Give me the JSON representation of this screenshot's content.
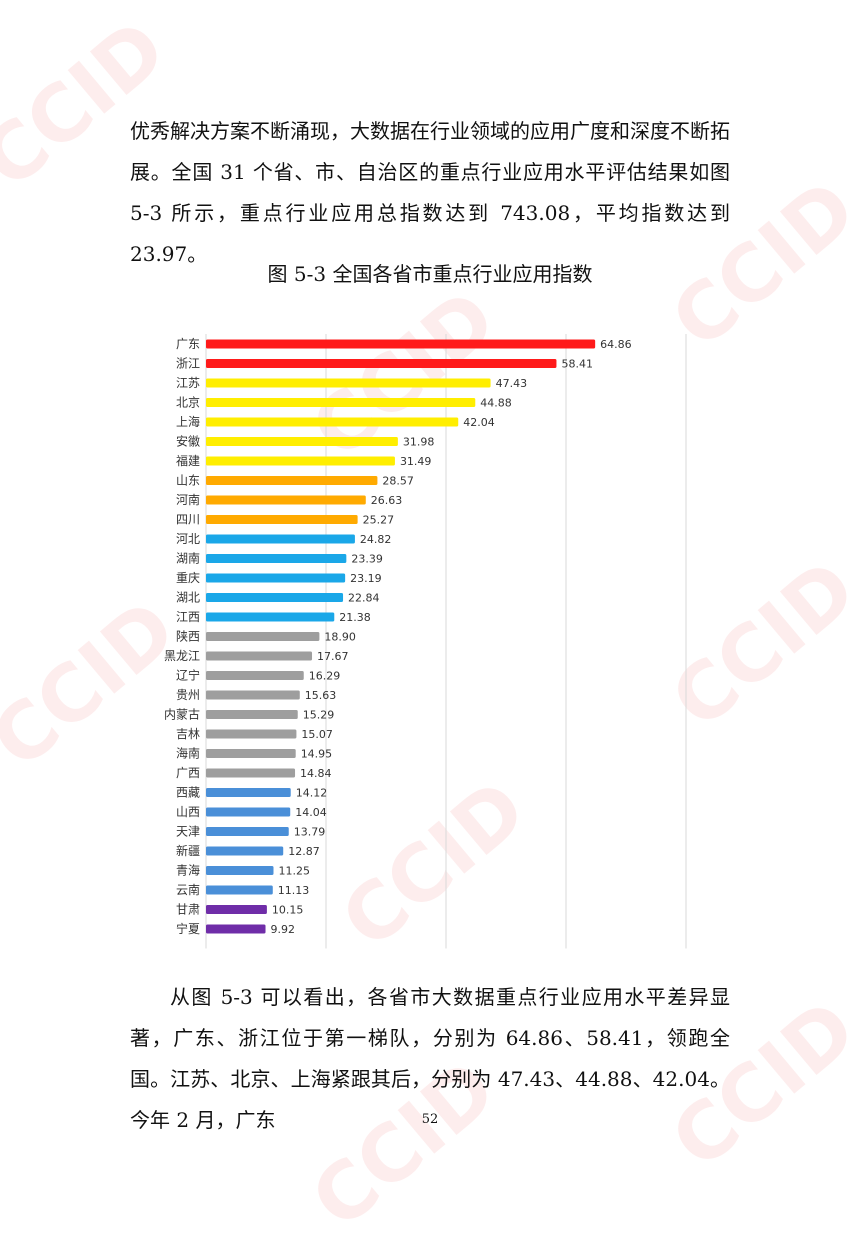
{
  "paragraphs": {
    "top": "优秀解决方案不断涌现，大数据在行业领域的应用广度和深度不断拓展。全国 31 个省、市、自治区的重点行业应用水平评估结果如图 5-3 所示，重点行业应用总指数达到 743.08，平均指数达到 23.97。",
    "bottom": "从图 5-3 可以看出，各省市大数据重点行业应用水平差异显著，广东、浙江位于第一梯队，分别为 64.86、58.41，领跑全国。江苏、北京、上海紧跟其后，分别为 47.43、44.88、42.04。今年 2 月，广东"
  },
  "figure_caption": "图 5-3  全国各省市重点行业应用指数",
  "page_number": "52",
  "watermark_text": "CCID赛迪",
  "chart_data": {
    "type": "bar",
    "orientation": "horizontal",
    "categories": [
      "广东",
      "浙江",
      "江苏",
      "北京",
      "上海",
      "安徽",
      "福建",
      "山东",
      "河南",
      "四川",
      "河北",
      "湖南",
      "重庆",
      "湖北",
      "江西",
      "陕西",
      "黑龙江",
      "辽宁",
      "贵州",
      "内蒙古",
      "吉林",
      "海南",
      "广西",
      "西藏",
      "山西",
      "天津",
      "新疆",
      "青海",
      "云南",
      "甘肃",
      "宁夏"
    ],
    "values": [
      64.86,
      58.41,
      47.43,
      44.88,
      42.04,
      31.98,
      31.49,
      28.57,
      26.63,
      25.27,
      24.82,
      23.39,
      23.19,
      22.84,
      21.38,
      18.9,
      17.67,
      16.29,
      15.63,
      15.29,
      15.07,
      14.95,
      14.84,
      14.12,
      14.04,
      13.79,
      12.87,
      11.25,
      11.13,
      10.15,
      9.92
    ],
    "value_labels": [
      "64.86",
      "58.41",
      "47.43",
      "44.88",
      "42.04",
      "31.98",
      "31.49",
      "28.57",
      "26.63",
      "25.27",
      "24.82",
      "23.39",
      "23.19",
      "22.84",
      "21.38",
      "18.90",
      "17.67",
      "16.29",
      "15.63",
      "15.29",
      "15.07",
      "14.95",
      "14.84",
      "14.12",
      "14.04",
      "13.79",
      "12.87",
      "11.25",
      "11.13",
      "10.15",
      "9.92"
    ],
    "colors": [
      "#ff1a1a",
      "#ff1a1a",
      "#ffee00",
      "#ffee00",
      "#ffee00",
      "#ffee00",
      "#ffee00",
      "#ffaa00",
      "#ffaa00",
      "#ffaa00",
      "#1aa7e8",
      "#1aa7e8",
      "#1aa7e8",
      "#1aa7e8",
      "#1aa7e8",
      "#9e9e9e",
      "#9e9e9e",
      "#9e9e9e",
      "#9e9e9e",
      "#9e9e9e",
      "#9e9e9e",
      "#9e9e9e",
      "#9e9e9e",
      "#4a8fd8",
      "#4a8fd8",
      "#4a8fd8",
      "#4a8fd8",
      "#4a8fd8",
      "#4a8fd8",
      "#6f2da8",
      "#6f2da8"
    ],
    "xlim": [
      0,
      80
    ],
    "grid": true,
    "legend": "none",
    "title": "",
    "xlabel": "",
    "ylabel": ""
  }
}
